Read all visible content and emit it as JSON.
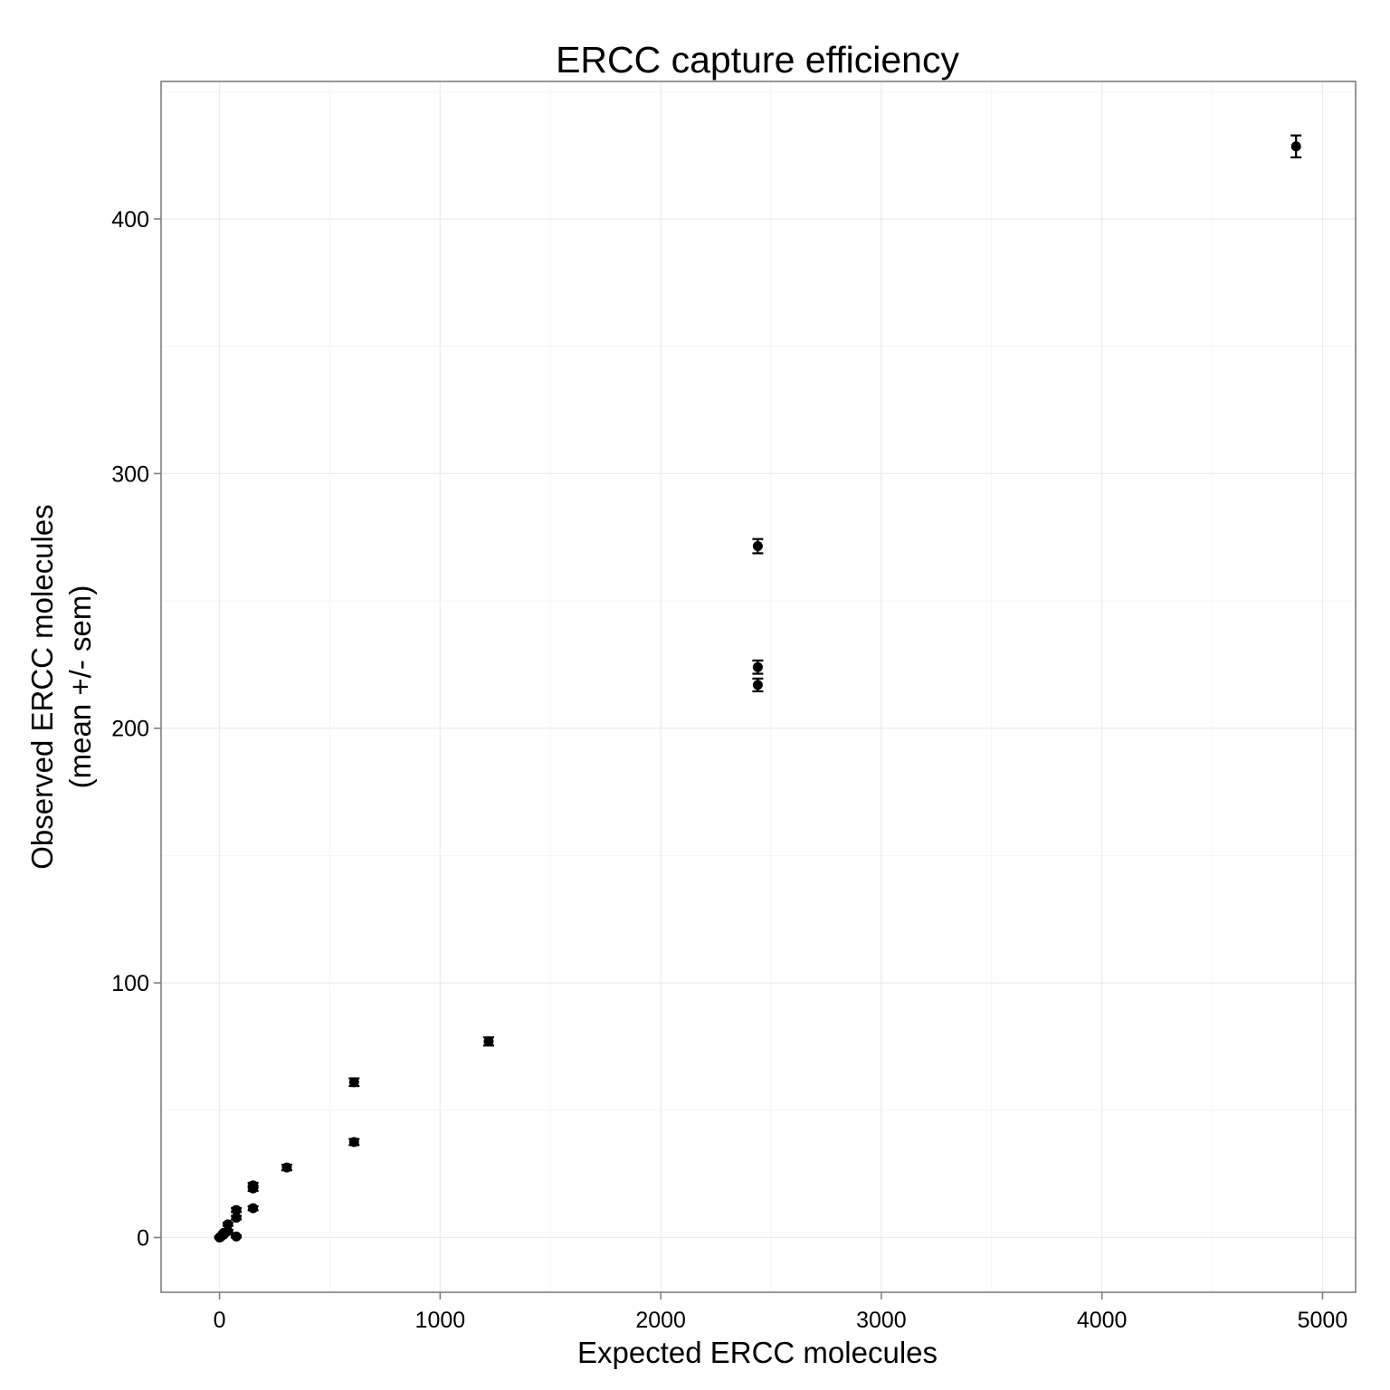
{
  "chart_data": {
    "type": "scatter",
    "title": "ERCC capture efficiency",
    "xlabel": "Expected ERCC molecules",
    "ylabel_line1": "Observed ERCC molecules",
    "ylabel_line2": "(mean +/- sem)",
    "xlim": [
      -265,
      5150
    ],
    "ylim": [
      -21.5,
      454
    ],
    "xticks": [
      0,
      1000,
      2000,
      3000,
      4000,
      5000
    ],
    "xtick_labels": [
      "0",
      "1000",
      "2000",
      "3000",
      "4000",
      "5000"
    ],
    "yticks": [
      0,
      100,
      200,
      300,
      400
    ],
    "ytick_labels": [
      "0",
      "100",
      "200",
      "300",
      "400"
    ],
    "grid": true,
    "legend": "none",
    "point_color": "#000000",
    "points": [
      {
        "x": 0.3,
        "y": 0.0,
        "sem": 0.3
      },
      {
        "x": 1.2,
        "y": 0.1,
        "sem": 0.3
      },
      {
        "x": 2.4,
        "y": 0.2,
        "sem": 0.3
      },
      {
        "x": 4.8,
        "y": 0.3,
        "sem": 0.3
      },
      {
        "x": 9.5,
        "y": 0.6,
        "sem": 0.3
      },
      {
        "x": 19,
        "y": 1.2,
        "sem": 0.4
      },
      {
        "x": 19,
        "y": 1.8,
        "sem": 0.4
      },
      {
        "x": 38,
        "y": 2.5,
        "sem": 0.5
      },
      {
        "x": 38,
        "y": 5.2,
        "sem": 0.6
      },
      {
        "x": 76,
        "y": 0.4,
        "sem": 0.4
      },
      {
        "x": 76,
        "y": 7.8,
        "sem": 0.7
      },
      {
        "x": 76,
        "y": 10.8,
        "sem": 0.8
      },
      {
        "x": 152,
        "y": 11.5,
        "sem": 0.8
      },
      {
        "x": 152,
        "y": 19.3,
        "sem": 1.0
      },
      {
        "x": 152,
        "y": 20.5,
        "sem": 1.0
      },
      {
        "x": 305,
        "y": 27.5,
        "sem": 1.1
      },
      {
        "x": 610,
        "y": 37.5,
        "sem": 1.2
      },
      {
        "x": 610,
        "y": 61.0,
        "sem": 1.5
      },
      {
        "x": 1220,
        "y": 77.0,
        "sem": 1.6
      },
      {
        "x": 2440,
        "y": 217.0,
        "sem": 2.5
      },
      {
        "x": 2440,
        "y": 224.0,
        "sem": 2.6
      },
      {
        "x": 2440,
        "y": 271.5,
        "sem": 2.8
      },
      {
        "x": 4880,
        "y": 428.5,
        "sem": 4.3
      }
    ]
  }
}
